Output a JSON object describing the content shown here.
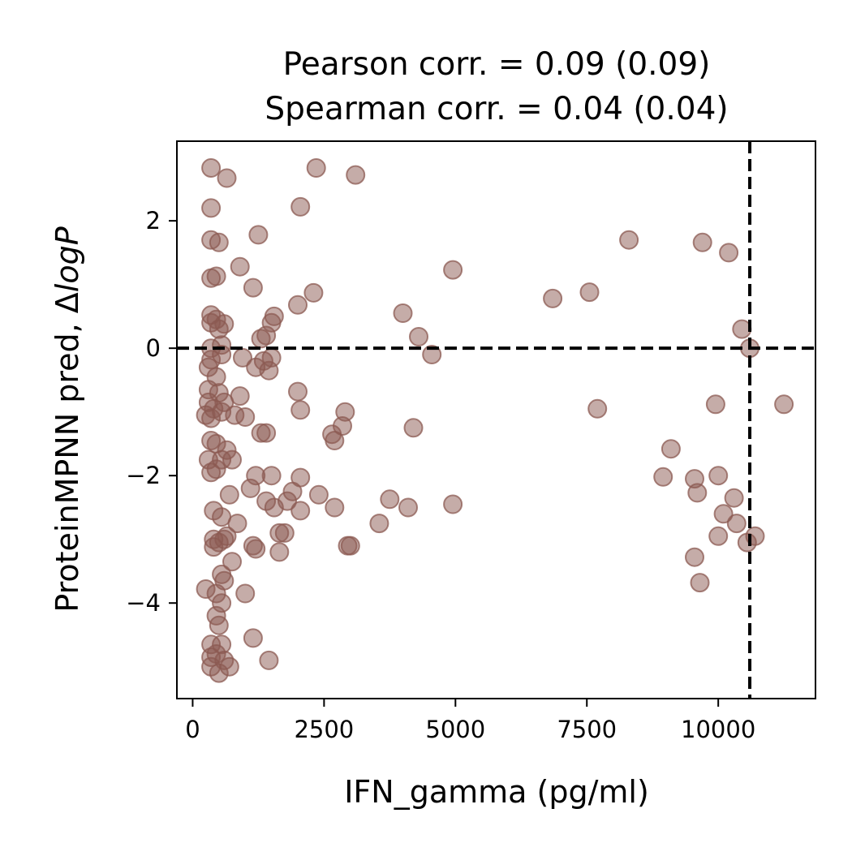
{
  "chart_data": {
    "type": "scatter",
    "title_lines": [
      "Pearson corr. = 0.09 (0.09)",
      "Spearman corr. = 0.04 (0.04)"
    ],
    "xlabel": "IFN_gamma (pg/ml)",
    "ylabel_prefix": "ProteinMPNN pred, Δ",
    "ylabel_italic": "logP",
    "xlim": [
      -300,
      11850
    ],
    "ylim": [
      -5.5,
      3.25
    ],
    "xticks": [
      0,
      2500,
      5000,
      7500,
      10000
    ],
    "xtick_labels": [
      "0",
      "2500",
      "5000",
      "7500",
      "10000"
    ],
    "yticks": [
      2,
      0,
      -2,
      -4
    ],
    "ytick_labels": [
      "2",
      "0",
      "−2",
      "−4"
    ],
    "reference_lines": {
      "y": 0,
      "x": 10600
    },
    "grid": false,
    "legend": "none",
    "marker_color": "#8B5A52",
    "series": [
      {
        "points": [
          [
            350,
            2.83
          ],
          [
            650,
            2.67
          ],
          [
            2350,
            2.83
          ],
          [
            3100,
            2.72
          ],
          [
            350,
            2.2
          ],
          [
            2050,
            2.22
          ],
          [
            350,
            1.7
          ],
          [
            500,
            1.66
          ],
          [
            1250,
            1.78
          ],
          [
            350,
            1.1
          ],
          [
            450,
            1.13
          ],
          [
            900,
            1.28
          ],
          [
            1150,
            0.95
          ],
          [
            2300,
            0.87
          ],
          [
            350,
            0.52
          ],
          [
            450,
            0.45
          ],
          [
            600,
            0.38
          ],
          [
            350,
            0.4
          ],
          [
            500,
            0.3
          ],
          [
            1500,
            0.4
          ],
          [
            1550,
            0.5
          ],
          [
            2000,
            0.68
          ],
          [
            1300,
            0.15
          ],
          [
            1400,
            0.2
          ],
          [
            350,
            0.0
          ],
          [
            550,
            0.05
          ],
          [
            350,
            -0.18
          ],
          [
            550,
            -0.1
          ],
          [
            950,
            -0.15
          ],
          [
            1200,
            -0.3
          ],
          [
            1350,
            -0.2
          ],
          [
            1450,
            -0.35
          ],
          [
            1500,
            -0.15
          ],
          [
            300,
            -0.3
          ],
          [
            450,
            -0.45
          ],
          [
            300,
            -0.65
          ],
          [
            500,
            -0.7
          ],
          [
            300,
            -0.85
          ],
          [
            400,
            -0.95
          ],
          [
            600,
            -0.85
          ],
          [
            900,
            -0.75
          ],
          [
            250,
            -1.05
          ],
          [
            350,
            -1.1
          ],
          [
            550,
            -1.0
          ],
          [
            800,
            -1.05
          ],
          [
            1000,
            -1.08
          ],
          [
            1300,
            -1.33
          ],
          [
            1400,
            -1.33
          ],
          [
            2000,
            -0.68
          ],
          [
            2050,
            -0.97
          ],
          [
            2650,
            -1.35
          ],
          [
            2700,
            -1.45
          ],
          [
            2850,
            -1.22
          ],
          [
            2900,
            -1.0
          ],
          [
            4200,
            -1.25
          ],
          [
            350,
            -1.45
          ],
          [
            450,
            -1.5
          ],
          [
            650,
            -1.6
          ],
          [
            300,
            -1.75
          ],
          [
            450,
            -1.9
          ],
          [
            550,
            -1.75
          ],
          [
            750,
            -1.75
          ],
          [
            350,
            -1.95
          ],
          [
            1200,
            -2.0
          ],
          [
            1500,
            -2.0
          ],
          [
            2050,
            -2.03
          ],
          [
            1100,
            -2.2
          ],
          [
            1900,
            -2.25
          ],
          [
            700,
            -2.3
          ],
          [
            1550,
            -2.5
          ],
          [
            1800,
            -2.4
          ],
          [
            2050,
            -2.55
          ],
          [
            2400,
            -2.3
          ],
          [
            2700,
            -2.5
          ],
          [
            3750,
            -2.37
          ],
          [
            4100,
            -2.5
          ],
          [
            4950,
            -2.45
          ],
          [
            3550,
            -2.75
          ],
          [
            400,
            -2.55
          ],
          [
            550,
            -2.65
          ],
          [
            850,
            -2.75
          ],
          [
            1400,
            -2.4
          ],
          [
            650,
            -2.95
          ],
          [
            400,
            -3.0
          ],
          [
            500,
            -3.05
          ],
          [
            1150,
            -3.1
          ],
          [
            1200,
            -3.15
          ],
          [
            1650,
            -2.9
          ],
          [
            1750,
            -2.9
          ],
          [
            1650,
            -3.2
          ],
          [
            2950,
            -3.1
          ],
          [
            3000,
            -3.1
          ],
          [
            400,
            -3.12
          ],
          [
            600,
            -3.0
          ],
          [
            750,
            -3.35
          ],
          [
            550,
            -3.55
          ],
          [
            600,
            -3.65
          ],
          [
            250,
            -3.78
          ],
          [
            450,
            -3.85
          ],
          [
            1000,
            -3.85
          ],
          [
            550,
            -4.0
          ],
          [
            450,
            -4.2
          ],
          [
            500,
            -4.35
          ],
          [
            1150,
            -4.55
          ],
          [
            350,
            -4.65
          ],
          [
            550,
            -4.65
          ],
          [
            350,
            -4.85
          ],
          [
            450,
            -4.8
          ],
          [
            600,
            -4.9
          ],
          [
            1450,
            -4.9
          ],
          [
            350,
            -5.0
          ],
          [
            500,
            -5.1
          ],
          [
            700,
            -5.0
          ],
          [
            4000,
            0.55
          ],
          [
            4300,
            0.18
          ],
          [
            4550,
            -0.1
          ],
          [
            4950,
            1.23
          ],
          [
            6850,
            0.78
          ],
          [
            7550,
            0.88
          ],
          [
            7700,
            -0.95
          ],
          [
            8300,
            1.7
          ],
          [
            9700,
            1.66
          ],
          [
            10200,
            1.5
          ],
          [
            10450,
            0.3
          ],
          [
            10600,
            0.0
          ],
          [
            9950,
            -0.88
          ],
          [
            11250,
            -0.88
          ],
          [
            9100,
            -1.58
          ],
          [
            8950,
            -2.02
          ],
          [
            9550,
            -2.05
          ],
          [
            9600,
            -2.27
          ],
          [
            10000,
            -2.0
          ],
          [
            10300,
            -2.35
          ],
          [
            10100,
            -2.6
          ],
          [
            10350,
            -2.75
          ],
          [
            10000,
            -2.95
          ],
          [
            10550,
            -3.05
          ],
          [
            10700,
            -2.95
          ],
          [
            9550,
            -3.28
          ],
          [
            9650,
            -3.68
          ]
        ]
      }
    ]
  }
}
